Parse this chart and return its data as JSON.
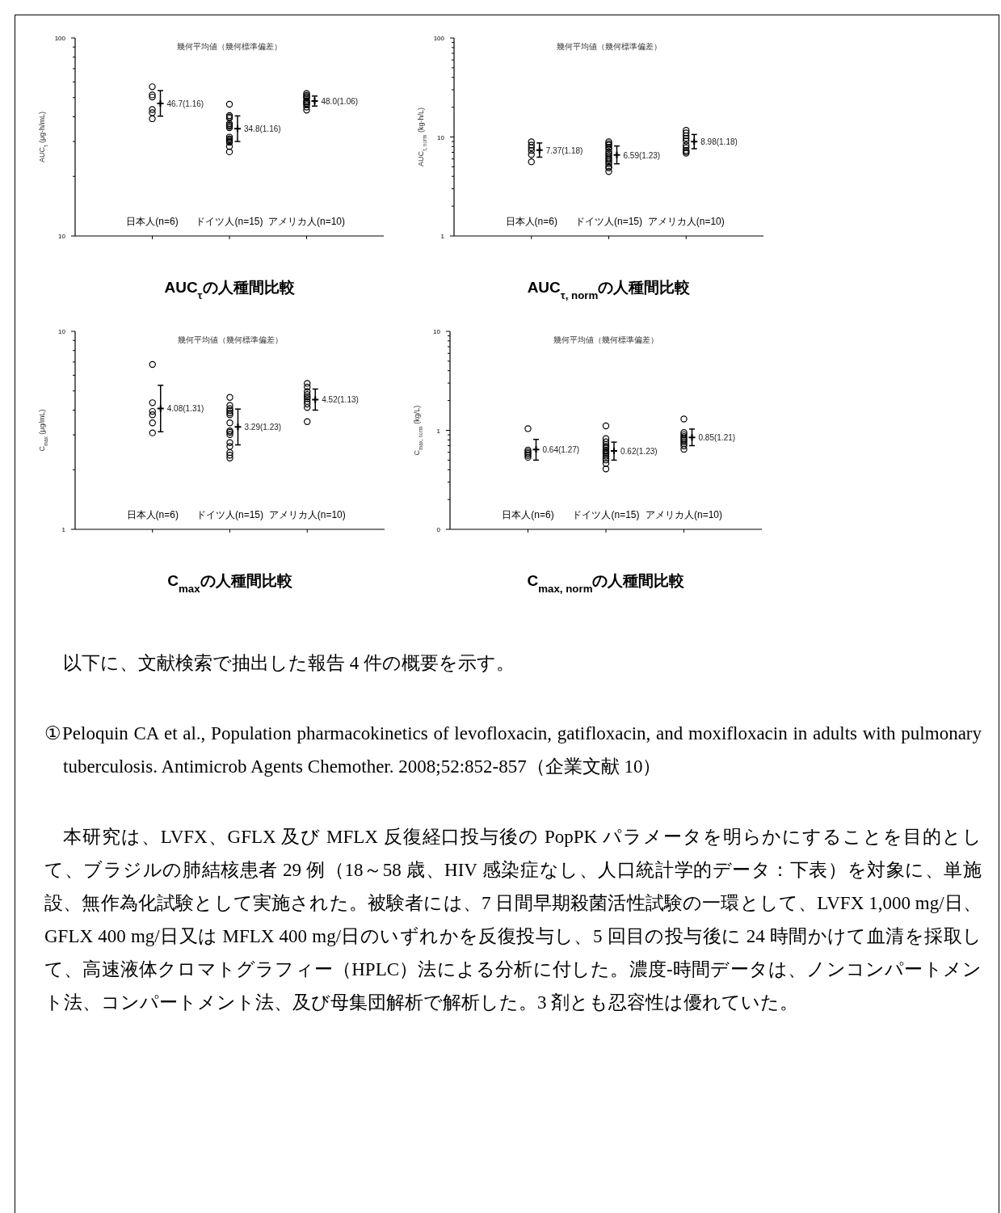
{
  "chart_data": [
    {
      "type": "scatter",
      "title": "AUC$_{τ}$の人種間比較",
      "subtitle": "幾何平均値（幾何標準偏差）",
      "ylabel": "AUC$_{τ}$ (μg·h/mL)",
      "categories": [
        "日本人(n=6)",
        "ドイツ人(n=15)",
        "アメリカ人(n=10)"
      ],
      "log": "y",
      "ylim": [
        10,
        100
      ],
      "yticks": [
        10,
        100
      ],
      "marker": "circle",
      "series": [
        {
          "type": "scatter",
          "color": "#000000",
          "x": [
            "日本人(n=6)",
            "日本人(n=6)",
            "日本人(n=6)",
            "日本人(n=6)",
            "日本人(n=6)",
            "日本人(n=6)",
            "ドイツ人(n=15)",
            "ドイツ人(n=15)",
            "ドイツ人(n=15)",
            "ドイツ人(n=15)",
            "ドイツ人(n=15)",
            "ドイツ人(n=15)",
            "ドイツ人(n=15)",
            "ドイツ人(n=15)",
            "ドイツ人(n=15)",
            "ドイツ人(n=15)",
            "ドイツ人(n=15)",
            "ドイツ人(n=15)",
            "ドイツ人(n=15)",
            "ドイツ人(n=15)",
            "ドイツ人(n=15)",
            "アメリカ人(n=10)",
            "アメリカ人(n=10)",
            "アメリカ人(n=10)",
            "アメリカ人(n=10)",
            "アメリカ人(n=10)",
            "アメリカ人(n=10)",
            "アメリカ人(n=10)",
            "アメリカ人(n=10)",
            "アメリカ人(n=10)",
            "アメリカ人(n=10)"
          ],
          "values": [
            56.7,
            51.6,
            50.3,
            43.5,
            41.9,
            39.1,
            46.3,
            40.6,
            39.9,
            39.3,
            36.9,
            36.3,
            35.8,
            35.2,
            31.6,
            31.0,
            30.6,
            30.1,
            29.7,
            28.3,
            26.6,
            52.4,
            51.3,
            50.5,
            49.7,
            48.2,
            47.5,
            46.7,
            46.0,
            44.8,
            43.2
          ]
        },
        {
          "type": "scatter",
          "color": "#000000",
          "marker": "cross",
          "values": [
            46.7,
            34.8,
            48.0
          ],
          "errors": [
            [
              40.3,
              54.2
            ],
            [
              30.0,
              40.4
            ],
            [
              45.3,
              50.9
            ]
          ],
          "value_labels": [
            "46.7(1.16)",
            "34.8(1.16)",
            "48.0(1.06)"
          ]
        }
      ]
    },
    {
      "type": "scatter",
      "title": "AUC$_{τ, norm}$の人種間比較",
      "subtitle": "幾何平均値（幾何標準偏差）",
      "ylabel": "AUC$_{τ, norm}$ (kg·h/L)",
      "categories": [
        "日本人(n=6)",
        "ドイツ人(n=15)",
        "アメリカ人(n=10)"
      ],
      "log": "y",
      "ylim": [
        1,
        100
      ],
      "yticks": [
        1,
        10,
        100
      ],
      "marker": "circle",
      "series": [
        {
          "type": "scatter",
          "color": "#000000",
          "x": [
            "日本人(n=6)",
            "日本人(n=6)",
            "日本人(n=6)",
            "日本人(n=6)",
            "日本人(n=6)",
            "日本人(n=6)",
            "ドイツ人(n=15)",
            "ドイツ人(n=15)",
            "ドイツ人(n=15)",
            "ドイツ人(n=15)",
            "ドイツ人(n=15)",
            "ドイツ人(n=15)",
            "ドイツ人(n=15)",
            "ドイツ人(n=15)",
            "ドイツ人(n=15)",
            "ドイツ人(n=15)",
            "ドイツ人(n=15)",
            "ドイツ人(n=15)",
            "ドイツ人(n=15)",
            "ドイツ人(n=15)",
            "ドイツ人(n=15)",
            "アメリカ人(n=10)",
            "アメリカ人(n=10)",
            "アメリカ人(n=10)",
            "アメリカ人(n=10)",
            "アメリカ人(n=10)",
            "アメリカ人(n=10)",
            "アメリカ人(n=10)",
            "アメリカ人(n=10)",
            "アメリカ人(n=10)",
            "アメリカ人(n=10)"
          ],
          "values": [
            8.93,
            8.28,
            7.78,
            7.31,
            6.65,
            5.62,
            8.93,
            8.55,
            8.28,
            7.88,
            7.54,
            7.08,
            6.78,
            6.45,
            6.13,
            5.87,
            5.62,
            5.34,
            5.01,
            4.86,
            4.48,
            11.7,
            11.0,
            10.3,
            9.69,
            9.1,
            8.28,
            7.78,
            7.31,
            7.05,
            6.85
          ]
        },
        {
          "type": "scatter",
          "color": "#000000",
          "marker": "cross",
          "values": [
            7.37,
            6.59,
            8.98
          ],
          "errors": [
            [
              6.25,
              8.7
            ],
            [
              5.36,
              8.11
            ],
            [
              7.61,
              10.6
            ]
          ],
          "value_labels": [
            "7.37(1.18)",
            "6.59(1.23)",
            "8.98(1.18)"
          ]
        }
      ]
    },
    {
      "type": "scatter",
      "title": "C$_{max}$の人種間比較",
      "subtitle": "幾何平均値（幾何標準偏差）",
      "ylabel": "C$_{max}$ (μg/mL)",
      "categories": [
        "日本人(n=6)",
        "ドイツ人(n=15)",
        "アメリカ人(n=10)"
      ],
      "log": "y",
      "ylim": [
        1,
        10
      ],
      "yticks": [
        1,
        10
      ],
      "marker": "circle",
      "series": [
        {
          "type": "scatter",
          "color": "#000000",
          "x": [
            "日本人(n=6)",
            "日本人(n=6)",
            "日本人(n=6)",
            "日本人(n=6)",
            "日本人(n=6)",
            "日本人(n=6)",
            "ドイツ人(n=15)",
            "ドイツ人(n=15)",
            "ドイツ人(n=15)",
            "ドイツ人(n=15)",
            "ドイツ人(n=15)",
            "ドイツ人(n=15)",
            "ドイツ人(n=15)",
            "ドイツ人(n=15)",
            "ドイツ人(n=15)",
            "ドイツ人(n=15)",
            "ドイツ人(n=15)",
            "ドイツ人(n=15)",
            "ドイツ人(n=15)",
            "ドイツ人(n=15)",
            "ドイツ人(n=15)",
            "アメリカ人(n=10)",
            "アメリカ人(n=10)",
            "アメリカ人(n=10)",
            "アメリカ人(n=10)",
            "アメリカ人(n=10)",
            "アメリカ人(n=10)",
            "アメリカ人(n=10)",
            "アメリカ人(n=10)",
            "アメリカ人(n=10)",
            "アメリカ人(n=10)"
          ],
          "values": [
            6.8,
            4.36,
            3.94,
            3.79,
            3.45,
            3.07,
            4.64,
            4.22,
            4.07,
            3.97,
            3.87,
            3.79,
            3.45,
            3.14,
            3.09,
            3.01,
            2.74,
            2.62,
            2.44,
            2.37,
            2.29,
            5.46,
            5.23,
            4.97,
            4.79,
            4.67,
            4.57,
            4.43,
            4.29,
            4.12,
            3.5
          ]
        },
        {
          "type": "scatter",
          "color": "#000000",
          "marker": "cross",
          "values": [
            4.08,
            3.29,
            4.52
          ],
          "errors": [
            [
              3.11,
              5.34
            ],
            [
              2.67,
              4.05
            ],
            [
              4.0,
              5.11
            ]
          ],
          "value_labels": [
            "4.08(1.31)",
            "3.29(1.23)",
            "4.52(1.13)"
          ]
        }
      ]
    },
    {
      "type": "scatter",
      "title": "C$_{max, norm}$の人種間比較",
      "subtitle": "幾何平均値（幾何標準偏差）",
      "ylabel": "C$_{max, norm}$ (kg/L)",
      "categories": [
        "日本人(n=6)",
        "ドイツ人(n=15)",
        "アメリカ人(n=10)"
      ],
      "log": "y",
      "ylim": [
        0.1,
        10
      ],
      "yticks": [
        {
          "value": 0.1,
          "label": "0"
        },
        1,
        10
      ],
      "marker": "circle",
      "series": [
        {
          "type": "scatter",
          "color": "#000000",
          "x": [
            "日本人(n=6)",
            "日本人(n=6)",
            "日本人(n=6)",
            "日本人(n=6)",
            "日本人(n=6)",
            "日本人(n=6)",
            "ドイツ人(n=15)",
            "ドイツ人(n=15)",
            "ドイツ人(n=15)",
            "ドイツ人(n=15)",
            "ドイツ人(n=15)",
            "ドイツ人(n=15)",
            "ドイツ人(n=15)",
            "ドイツ人(n=15)",
            "ドイツ人(n=15)",
            "ドイツ人(n=15)",
            "ドイツ人(n=15)",
            "ドイツ人(n=15)",
            "ドイツ人(n=15)",
            "ドイツ人(n=15)",
            "ドイツ人(n=15)",
            "アメリカ人(n=10)",
            "アメリカ人(n=10)",
            "アメリカ人(n=10)",
            "アメリカ人(n=10)",
            "アメリカ人(n=10)",
            "アメリカ人(n=10)",
            "アメリカ人(n=10)",
            "アメリカ人(n=10)",
            "アメリカ人(n=10)",
            "アメリカ人(n=10)"
          ],
          "values": [
            1.04,
            0.632,
            0.605,
            0.583,
            0.558,
            0.534,
            1.11,
            0.824,
            0.764,
            0.718,
            0.687,
            0.661,
            0.632,
            0.613,
            0.594,
            0.575,
            0.548,
            0.524,
            0.502,
            0.462,
            0.408,
            1.3,
            0.951,
            0.904,
            0.866,
            0.829,
            0.798,
            0.764,
            0.731,
            0.695,
            0.644
          ]
        },
        {
          "type": "scatter",
          "color": "#000000",
          "marker": "cross",
          "values": [
            0.64,
            0.62,
            0.85
          ],
          "errors": [
            [
              0.5,
              0.81
            ],
            [
              0.5,
              0.76
            ],
            [
              0.7,
              1.03
            ]
          ],
          "value_labels": [
            "0.64(1.27)",
            "0.62(1.23)",
            "0.85(1.21)"
          ]
        }
      ]
    },
    {
      "type": "other",
      "annotations": [
        "以下に、文献検索で抽出した報告 4 件の概要を示す。",
        "①Peloquin CA et al., Population pharmacokinetics of levofloxacin, gatifloxacin, and moxifloxacin in adults with pulmonary tuberculosis. Antimicrob Agents Chemother. 2008;52:852-857（企業文献 10）",
        "本研究は、LVFX、GFLX 及び MFLX 反復経口投与後の PopPK パラメータを明らかにすることを目的として、ブラジルの肺結核患者 29 例（18～58 歳、HIV 感染症なし、人口統計学的データ：下表）を対象に、単施設、無作為化試験として実施された。被験者には、7 日間早期殺菌活性試験の一環として、LVFX 1,000 mg/日、GFLX 400 mg/日又は MFLX 400 mg/日のいずれかを反復投与し、5 回目の投与後に 24 時間かけて血清を採取して、高速液体クロマトグラフィー（HPLC）法による分析に付した。濃度-時間データは、ノンコンパートメント法、コンパートメント法、及び母集団解析で解析した。3 剤とも忍容性は優れていた。"
      ]
    }
  ]
}
